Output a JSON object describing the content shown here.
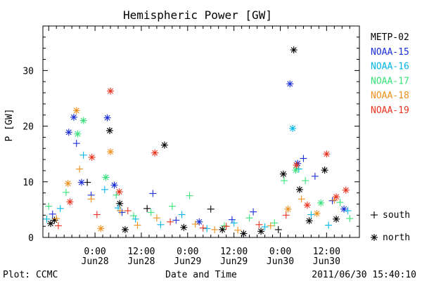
{
  "chart_data": {
    "type": "scatter",
    "title": "Hemispheric Power [GW]",
    "ylabel": "P [GW]",
    "xlabel": "Date and Time",
    "ylim": [
      0,
      38
    ],
    "xlim_hours": [
      -13.5,
      68.5
    ],
    "y_ticks": [
      0,
      10,
      20,
      30
    ],
    "x_ticks": [
      {
        "hour": 0,
        "time": "0:00",
        "date": "Jun28"
      },
      {
        "hour": 12,
        "time": "12:00",
        "date": "Jun28"
      },
      {
        "hour": 24,
        "time": "0:00",
        "date": "Jun29"
      },
      {
        "hour": 36,
        "time": "12:00",
        "date": "Jun29"
      },
      {
        "hour": 48,
        "time": "0:00",
        "date": "Jun30"
      },
      {
        "hour": 60,
        "time": "12:00",
        "date": "Jun30"
      }
    ],
    "footer_left": "Plot: CCMC",
    "footer_right": "2011/06/30 15:40:10",
    "legend_markers": [
      {
        "symbol": "+",
        "label": "south"
      },
      {
        "symbol": "*",
        "label": "north"
      }
    ],
    "series": [
      {
        "name": "METP-02",
        "color": "#000000",
        "points": [
          {
            "x": -11.5,
            "y": 2.5,
            "m": "*"
          },
          {
            "x": -10.5,
            "y": 3.1,
            "m": "*"
          },
          {
            "x": -2.0,
            "y": 9.9,
            "m": "+"
          },
          {
            "x": 3.8,
            "y": 19.2,
            "m": "*"
          },
          {
            "x": 6.4,
            "y": 6.1,
            "m": "*"
          },
          {
            "x": 7.8,
            "y": 1.4,
            "m": "*"
          },
          {
            "x": 13.5,
            "y": 5.2,
            "m": "+"
          },
          {
            "x": 18.0,
            "y": 16.6,
            "m": "*"
          },
          {
            "x": 23.0,
            "y": 1.8,
            "m": "*"
          },
          {
            "x": 30.0,
            "y": 5.1,
            "m": "+"
          },
          {
            "x": 33.0,
            "y": 1.4,
            "m": "*"
          },
          {
            "x": 38.5,
            "y": 0.7,
            "m": "*"
          },
          {
            "x": 43.0,
            "y": 1.1,
            "m": "*"
          },
          {
            "x": 47.5,
            "y": 1.4,
            "m": "+"
          },
          {
            "x": 48.8,
            "y": 11.4,
            "m": "*"
          },
          {
            "x": 51.5,
            "y": 33.7,
            "m": "*"
          },
          {
            "x": 53.0,
            "y": 8.6,
            "m": "*"
          },
          {
            "x": 55.5,
            "y": 3.0,
            "m": "*"
          },
          {
            "x": 59.5,
            "y": 12.1,
            "m": "*"
          },
          {
            "x": 62.5,
            "y": 3.3,
            "m": "*"
          }
        ]
      },
      {
        "name": "NOAA-15",
        "color": "#1a2ed6",
        "points": [
          {
            "x": -11.0,
            "y": 4.2,
            "m": "+"
          },
          {
            "x": -6.8,
            "y": 18.9,
            "m": "*"
          },
          {
            "x": -5.5,
            "y": 21.6,
            "m": "*"
          },
          {
            "x": -4.8,
            "y": 16.9,
            "m": "+"
          },
          {
            "x": -3.5,
            "y": 9.9,
            "m": "*"
          },
          {
            "x": -1.0,
            "y": 7.6,
            "m": "+"
          },
          {
            "x": 3.2,
            "y": 21.5,
            "m": "*"
          },
          {
            "x": 5.0,
            "y": 9.4,
            "m": "*"
          },
          {
            "x": 7.0,
            "y": 4.5,
            "m": "+"
          },
          {
            "x": 15.0,
            "y": 7.9,
            "m": "+"
          },
          {
            "x": 21.0,
            "y": 3.1,
            "m": "+"
          },
          {
            "x": 27.0,
            "y": 2.8,
            "m": "*"
          },
          {
            "x": 35.5,
            "y": 3.2,
            "m": "+"
          },
          {
            "x": 41.0,
            "y": 4.6,
            "m": "+"
          },
          {
            "x": 50.5,
            "y": 27.6,
            "m": "*"
          },
          {
            "x": 52.5,
            "y": 13.3,
            "m": "*"
          },
          {
            "x": 54.0,
            "y": 14.2,
            "m": "+"
          },
          {
            "x": 57.0,
            "y": 11.0,
            "m": "+"
          },
          {
            "x": 61.5,
            "y": 6.6,
            "m": "+"
          },
          {
            "x": 64.5,
            "y": 5.1,
            "m": "*"
          }
        ]
      },
      {
        "name": "NOAA-16",
        "color": "#00b7e8",
        "points": [
          {
            "x": -12.5,
            "y": 3.3,
            "m": "+"
          },
          {
            "x": -9.0,
            "y": 5.2,
            "m": "+"
          },
          {
            "x": -3.0,
            "y": 14.8,
            "m": "+"
          },
          {
            "x": 2.5,
            "y": 8.6,
            "m": "+"
          },
          {
            "x": 6.0,
            "y": 5.3,
            "m": "+"
          },
          {
            "x": 10.5,
            "y": 3.3,
            "m": "+"
          },
          {
            "x": 17.0,
            "y": 2.3,
            "m": "+"
          },
          {
            "x": 22.5,
            "y": 4.1,
            "m": "+"
          },
          {
            "x": 29.0,
            "y": 1.6,
            "m": "+"
          },
          {
            "x": 36.0,
            "y": 2.6,
            "m": "+"
          },
          {
            "x": 44.0,
            "y": 1.9,
            "m": "+"
          },
          {
            "x": 51.2,
            "y": 19.6,
            "m": "*"
          },
          {
            "x": 52.8,
            "y": 12.3,
            "m": "+"
          },
          {
            "x": 56.0,
            "y": 4.1,
            "m": "+"
          },
          {
            "x": 60.5,
            "y": 2.2,
            "m": "+"
          },
          {
            "x": 65.5,
            "y": 4.8,
            "m": "+"
          }
        ]
      },
      {
        "name": "NOAA-17",
        "color": "#39e27a",
        "points": [
          {
            "x": -12.0,
            "y": 5.6,
            "m": "+"
          },
          {
            "x": -7.5,
            "y": 8.1,
            "m": "+"
          },
          {
            "x": -4.5,
            "y": 18.6,
            "m": "*"
          },
          {
            "x": -3.0,
            "y": 21.0,
            "m": "*"
          },
          {
            "x": 2.8,
            "y": 10.8,
            "m": "*"
          },
          {
            "x": 5.5,
            "y": 7.6,
            "m": "+"
          },
          {
            "x": 10.0,
            "y": 3.9,
            "m": "+"
          },
          {
            "x": 14.5,
            "y": 4.5,
            "m": "+"
          },
          {
            "x": 20.0,
            "y": 5.6,
            "m": "+"
          },
          {
            "x": 24.5,
            "y": 7.5,
            "m": "+"
          },
          {
            "x": 33.5,
            "y": 2.1,
            "m": "+"
          },
          {
            "x": 40.0,
            "y": 3.5,
            "m": "+"
          },
          {
            "x": 46.5,
            "y": 2.6,
            "m": "+"
          },
          {
            "x": 49.0,
            "y": 10.2,
            "m": "+"
          },
          {
            "x": 52.0,
            "y": 12.1,
            "m": "*"
          },
          {
            "x": 54.5,
            "y": 10.2,
            "m": "+"
          },
          {
            "x": 58.5,
            "y": 6.2,
            "m": "*"
          },
          {
            "x": 63.5,
            "y": 6.3,
            "m": "+"
          },
          {
            "x": 66.0,
            "y": 3.4,
            "m": "+"
          }
        ]
      },
      {
        "name": "NOAA-18",
        "color": "#f0901c",
        "points": [
          {
            "x": -10.0,
            "y": 3.4,
            "m": "+"
          },
          {
            "x": -7.0,
            "y": 9.7,
            "m": "*"
          },
          {
            "x": -4.8,
            "y": 22.8,
            "m": "*"
          },
          {
            "x": -4.0,
            "y": 12.3,
            "m": "+"
          },
          {
            "x": -1.0,
            "y": 6.9,
            "m": "+"
          },
          {
            "x": 1.5,
            "y": 1.6,
            "m": "*"
          },
          {
            "x": 4.0,
            "y": 15.4,
            "m": "*"
          },
          {
            "x": 6.5,
            "y": 4.8,
            "m": "+"
          },
          {
            "x": 11.0,
            "y": 2.2,
            "m": "+"
          },
          {
            "x": 16.0,
            "y": 3.5,
            "m": "+"
          },
          {
            "x": 26.0,
            "y": 2.4,
            "m": "+"
          },
          {
            "x": 31.0,
            "y": 1.4,
            "m": "+"
          },
          {
            "x": 37.0,
            "y": 1.3,
            "m": "+"
          },
          {
            "x": 45.5,
            "y": 2.1,
            "m": "+"
          },
          {
            "x": 50.0,
            "y": 5.1,
            "m": "*"
          },
          {
            "x": 53.5,
            "y": 6.9,
            "m": "+"
          },
          {
            "x": 57.5,
            "y": 4.3,
            "m": "*"
          },
          {
            "x": 62.0,
            "y": 6.7,
            "m": "+"
          }
        ]
      },
      {
        "name": "NOAA-19",
        "color": "#e8321e",
        "points": [
          {
            "x": -9.5,
            "y": 2.1,
            "m": "+"
          },
          {
            "x": -6.5,
            "y": 6.4,
            "m": "*"
          },
          {
            "x": -0.8,
            "y": 14.4,
            "m": "*"
          },
          {
            "x": 0.5,
            "y": 4.1,
            "m": "+"
          },
          {
            "x": 4.0,
            "y": 26.3,
            "m": "*"
          },
          {
            "x": 6.3,
            "y": 8.2,
            "m": "*"
          },
          {
            "x": 8.5,
            "y": 4.8,
            "m": "+"
          },
          {
            "x": 15.5,
            "y": 15.2,
            "m": "*"
          },
          {
            "x": 19.5,
            "y": 2.8,
            "m": "+"
          },
          {
            "x": 28.0,
            "y": 1.7,
            "m": "+"
          },
          {
            "x": 34.0,
            "y": 2.0,
            "m": "+"
          },
          {
            "x": 42.5,
            "y": 2.3,
            "m": "+"
          },
          {
            "x": 49.5,
            "y": 4.0,
            "m": "+"
          },
          {
            "x": 52.2,
            "y": 13.0,
            "m": "*"
          },
          {
            "x": 55.0,
            "y": 5.8,
            "m": "*"
          },
          {
            "x": 60.0,
            "y": 15.0,
            "m": "*"
          },
          {
            "x": 62.5,
            "y": 7.3,
            "m": "*"
          },
          {
            "x": 65.0,
            "y": 8.5,
            "m": "*"
          }
        ]
      }
    ]
  }
}
